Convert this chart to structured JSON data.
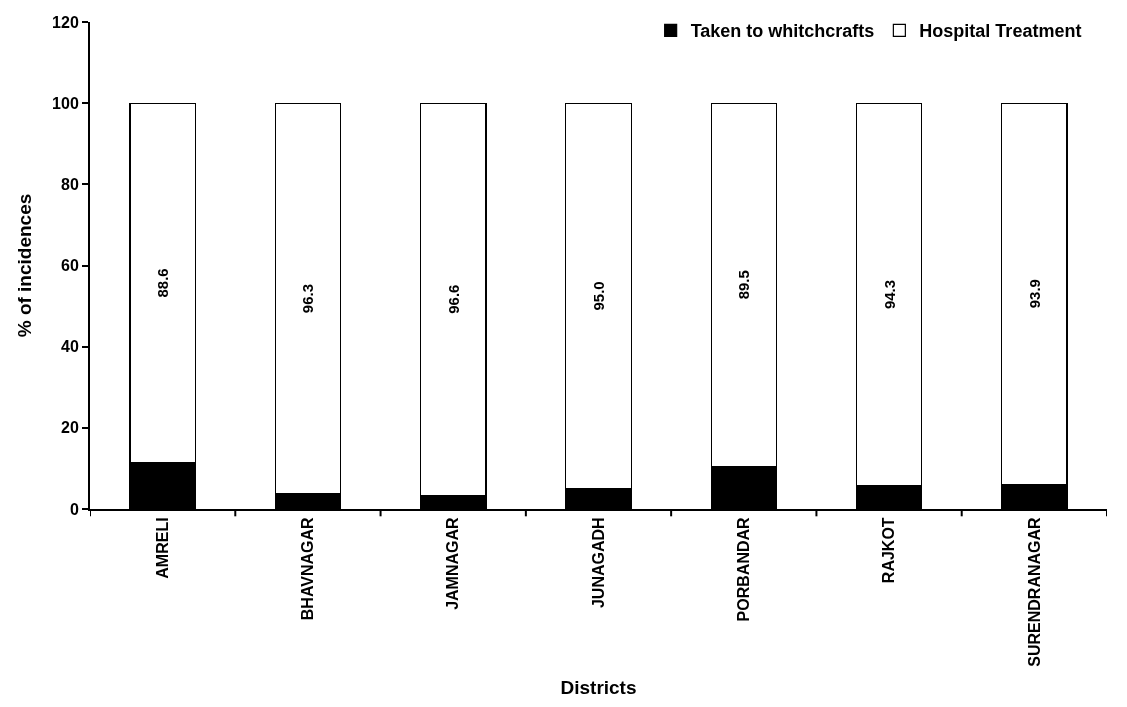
{
  "chart_data": {
    "type": "bar",
    "stacked": true,
    "xlabel": "Districts",
    "ylabel": "% of incidences",
    "categories": [
      "AMRELI",
      "BHAVNAGAR",
      "JAMNAGAR",
      "JUNAGADH",
      "PORBANDAR",
      "RAJKOT",
      "SURENDRANAGAR"
    ],
    "series": [
      {
        "name": "Taken to whitchcrafts",
        "color": "#000000",
        "values": [
          11.4,
          3.7,
          3.4,
          5.0,
          10.5,
          5.7,
          6.1
        ]
      },
      {
        "name": "Hospital Treatment",
        "color": "#ffffff",
        "values": [
          88.6,
          96.3,
          96.6,
          95.0,
          89.5,
          94.3,
          93.9
        ],
        "value_labels": [
          "88.6",
          "96.3",
          "96.6",
          "95.0",
          "89.5",
          "94.3",
          "93.9"
        ]
      }
    ],
    "ylim": [
      0,
      120
    ],
    "yticks": [
      0,
      20,
      40,
      60,
      80,
      100,
      120
    ],
    "legend": "top right"
  }
}
